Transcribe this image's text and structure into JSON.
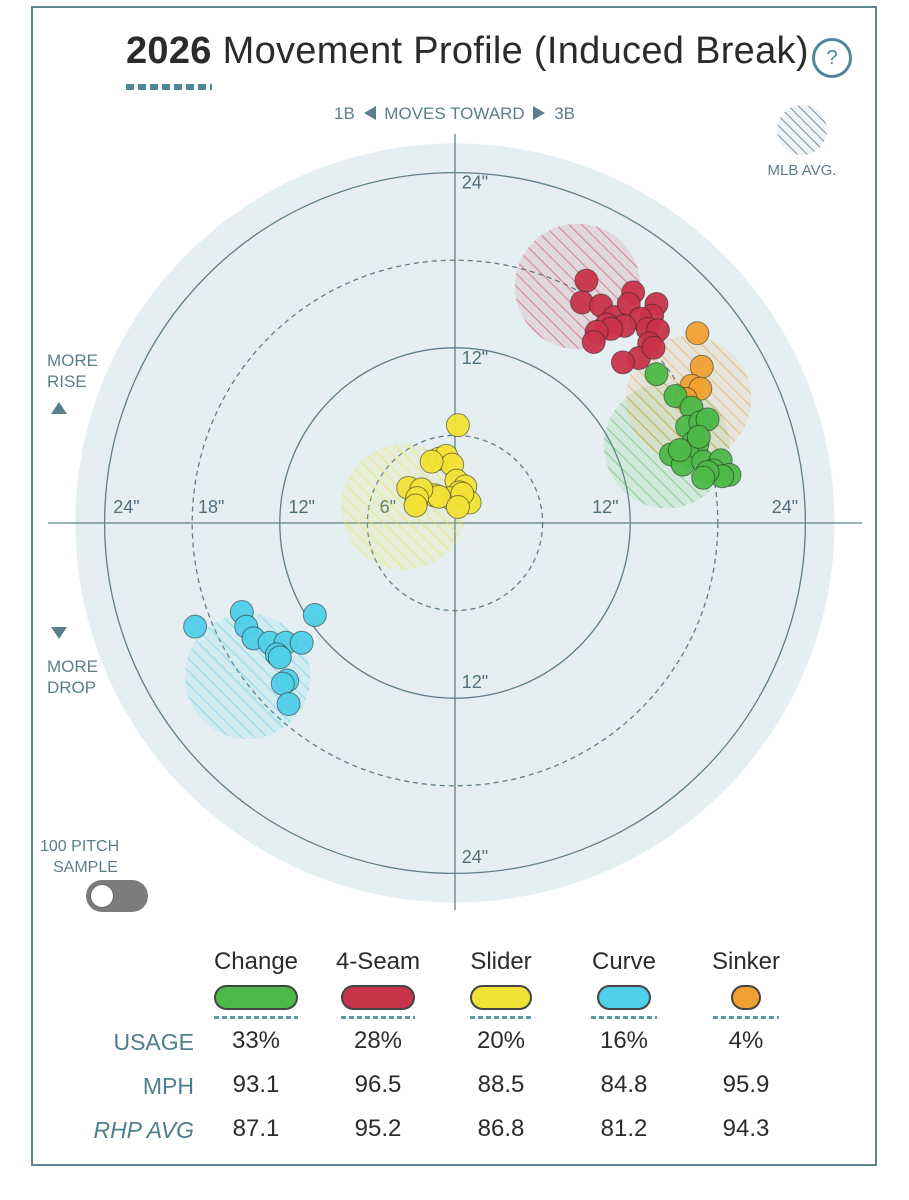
{
  "header": {
    "year": "2026",
    "title": "Movement Profile (Induced Break)",
    "help_label": "?"
  },
  "direction": {
    "left": "1B",
    "middle": "MOVES TOWARD",
    "right": "3B"
  },
  "key": {
    "label": "MLB AVG."
  },
  "side_labels": {
    "rise_1": "MORE",
    "rise_2": "RISE",
    "drop_1": "MORE",
    "drop_2": "DROP"
  },
  "sample": {
    "line1": "100 PITCH",
    "line2": "SAMPLE"
  },
  "colors": {
    "background_disc": "#e5eff2",
    "ring": "#5f7f8a",
    "Change": "#4cb848",
    "4-Seam": "#c9334a",
    "Slider": "#f2e135",
    "Curve": "#4fcfe8",
    "Sinker": "#f0a032"
  },
  "chart_data": {
    "type": "scatter",
    "title": "2026 Movement Profile (Induced Break)",
    "xlabel": "Horizontal break (in): 1B ◀ MOVES TOWARD ▶ 3B",
    "ylabel": "Induced vertical break (in): MORE RISE / MORE DROP",
    "xlim": [
      -26,
      26
    ],
    "ylim": [
      -26,
      26
    ],
    "rings": [
      6,
      12,
      18,
      24
    ],
    "axis_tick_labels": {
      "left": [
        "24\"",
        "18\"",
        "12\"",
        "6\""
      ],
      "right": [
        "12\"",
        "24\""
      ],
      "top": [
        "24\"",
        "12\""
      ],
      "bottom": [
        "12\"",
        "24\""
      ]
    },
    "series": [
      {
        "name": "Change",
        "mlb_avg": {
          "x": 14.5,
          "y": 5.3,
          "r": 4.3
        },
        "points": [
          [
            13.8,
            10.2
          ],
          [
            15.1,
            8.7
          ],
          [
            16.2,
            7.9
          ],
          [
            15.9,
            6.6
          ],
          [
            16.8,
            6.9
          ],
          [
            17.3,
            7.1
          ],
          [
            16.3,
            5.5
          ],
          [
            16.6,
            5.4
          ],
          [
            16.0,
            4.6
          ],
          [
            14.8,
            4.7
          ],
          [
            15.6,
            4.0
          ],
          [
            17.0,
            4.2
          ],
          [
            18.2,
            4.3
          ],
          [
            17.7,
            3.6
          ],
          [
            18.8,
            3.3
          ],
          [
            18.3,
            3.2
          ],
          [
            17.3,
            3.5
          ],
          [
            17.0,
            3.1
          ],
          [
            16.7,
            5.9
          ],
          [
            15.4,
            5.0
          ]
        ]
      },
      {
        "name": "4-Seam",
        "mlb_avg": {
          "x": 8.4,
          "y": 16.2,
          "r": 4.3
        },
        "points": [
          [
            9.0,
            16.6
          ],
          [
            8.7,
            15.1
          ],
          [
            10.0,
            14.9
          ],
          [
            10.9,
            14.1
          ],
          [
            12.2,
            15.8
          ],
          [
            11.9,
            15.0
          ],
          [
            13.8,
            15.0
          ],
          [
            13.5,
            14.2
          ],
          [
            12.7,
            14.0
          ],
          [
            11.6,
            13.5
          ],
          [
            10.4,
            13.6
          ],
          [
            10.7,
            13.3
          ],
          [
            9.7,
            13.1
          ],
          [
            13.2,
            13.3
          ],
          [
            13.9,
            13.2
          ],
          [
            13.3,
            12.3
          ],
          [
            12.6,
            11.3
          ],
          [
            9.5,
            12.4
          ],
          [
            11.5,
            11.0
          ],
          [
            13.6,
            12.0
          ]
        ]
      },
      {
        "name": "Slider",
        "mlb_avg": {
          "x": -3.5,
          "y": 1.1,
          "r": 4.3
        },
        "points": [
          [
            0.2,
            6.7
          ],
          [
            -1.1,
            4.4
          ],
          [
            -0.6,
            4.6
          ],
          [
            -0.2,
            4.0
          ],
          [
            -1.6,
            4.2
          ],
          [
            0.1,
            2.9
          ],
          [
            0.7,
            2.5
          ],
          [
            0.3,
            2.1
          ],
          [
            -0.3,
            1.7
          ],
          [
            1.0,
            1.4
          ],
          [
            -1.4,
            1.9
          ],
          [
            -1.1,
            1.8
          ],
          [
            -3.2,
            2.4
          ],
          [
            -2.3,
            2.3
          ],
          [
            -2.6,
            1.7
          ],
          [
            -2.7,
            1.2
          ],
          [
            0.5,
            2.0
          ],
          [
            0.2,
            1.1
          ]
        ]
      },
      {
        "name": "Curve",
        "mlb_avg": {
          "x": -14.2,
          "y": -10.5,
          "r": 4.3
        },
        "points": [
          [
            -17.8,
            -7.1
          ],
          [
            -14.6,
            -6.1
          ],
          [
            -14.3,
            -7.1
          ],
          [
            -13.8,
            -7.9
          ],
          [
            -12.7,
            -8.2
          ],
          [
            -11.6,
            -8.2
          ],
          [
            -10.5,
            -8.2
          ],
          [
            -9.6,
            -6.3
          ],
          [
            -12.2,
            -9.0
          ],
          [
            -12.0,
            -9.2
          ],
          [
            -11.5,
            -10.8
          ],
          [
            -11.8,
            -11.0
          ],
          [
            -11.4,
            -12.4
          ]
        ]
      },
      {
        "name": "Sinker",
        "mlb_avg": {
          "x": 16.0,
          "y": 8.5,
          "r": 4.3
        },
        "points": [
          [
            16.6,
            13.0
          ],
          [
            16.9,
            10.7
          ],
          [
            16.2,
            9.4
          ],
          [
            16.8,
            9.2
          ],
          [
            15.8,
            8.5
          ]
        ]
      }
    ]
  },
  "legend": {
    "rows": {
      "usage": "USAGE",
      "mph": "MPH",
      "rhp_avg": "RHP AVG"
    },
    "pitches": [
      {
        "name": "Change",
        "usage": "33%",
        "mph": "93.1",
        "rhp_avg": "87.1"
      },
      {
        "name": "4-Seam",
        "usage": "28%",
        "mph": "96.5",
        "rhp_avg": "95.2"
      },
      {
        "name": "Slider",
        "usage": "20%",
        "mph": "88.5",
        "rhp_avg": "86.8"
      },
      {
        "name": "Curve",
        "usage": "16%",
        "mph": "84.8",
        "rhp_avg": "81.2"
      },
      {
        "name": "Sinker",
        "usage": "4%",
        "mph": "95.9",
        "rhp_avg": "94.3"
      }
    ]
  }
}
